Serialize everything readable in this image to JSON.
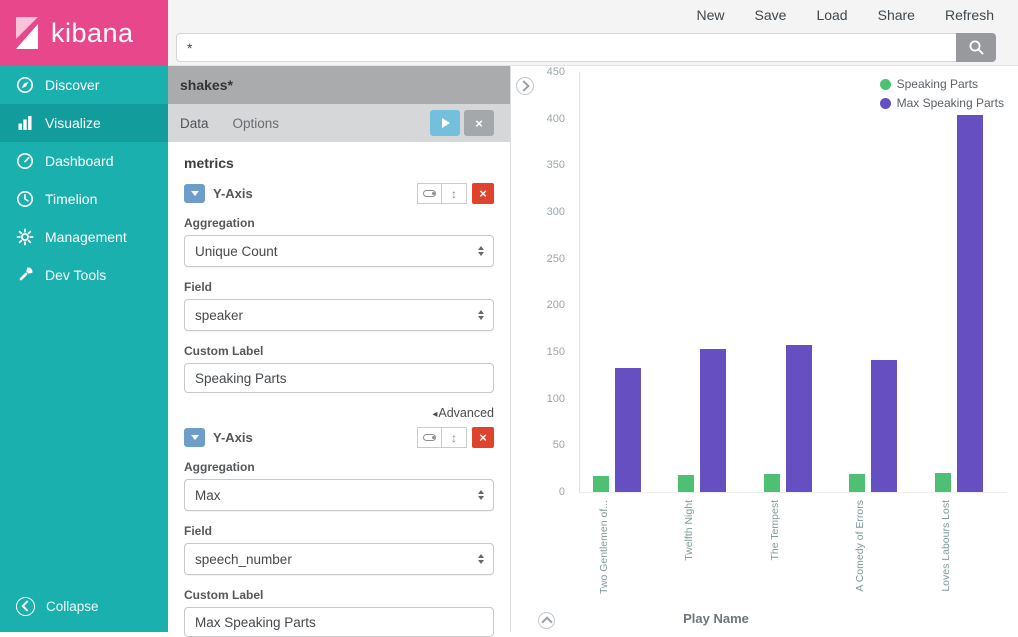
{
  "brand": {
    "name": "kibana",
    "color": "#e8478b"
  },
  "topnav": {
    "items": [
      {
        "label": "New"
      },
      {
        "label": "Save"
      },
      {
        "label": "Load"
      },
      {
        "label": "Share"
      },
      {
        "label": "Refresh"
      }
    ]
  },
  "search": {
    "value": "*"
  },
  "sidebar": {
    "color": "#1ab0ad",
    "items": [
      {
        "label": "Discover",
        "icon": "compass-icon",
        "active": false
      },
      {
        "label": "Visualize",
        "icon": "bar-chart-icon",
        "active": true
      },
      {
        "label": "Dashboard",
        "icon": "gauge-icon",
        "active": false
      },
      {
        "label": "Timelion",
        "icon": "clock-icon",
        "active": false
      },
      {
        "label": "Management",
        "icon": "gear-icon",
        "active": false
      },
      {
        "label": "Dev Tools",
        "icon": "wrench-icon",
        "active": false
      }
    ],
    "collapse_label": "Collapse"
  },
  "config": {
    "index_pattern": "shakes*",
    "tabs": [
      {
        "label": "Data",
        "active": true
      },
      {
        "label": "Options",
        "active": false
      }
    ],
    "metrics_heading": "metrics",
    "advanced_label": "Advanced",
    "metrics": [
      {
        "title": "Y-Axis",
        "aggregation_label": "Aggregation",
        "aggregation_value": "Unique Count",
        "field_label": "Field",
        "field_value": "speaker",
        "custom_label_label": "Custom Label",
        "custom_label_value": "Speaking Parts"
      },
      {
        "title": "Y-Axis",
        "aggregation_label": "Aggregation",
        "aggregation_value": "Max",
        "field_label": "Field",
        "field_value": "speech_number",
        "custom_label_label": "Custom Label",
        "custom_label_value": "Max Speaking Parts"
      }
    ]
  },
  "icons": {
    "close": "×",
    "reorder": "↕",
    "advanced_collapse": "◂"
  },
  "chart_data": {
    "type": "bar",
    "title": "",
    "categories": [
      "Two Gentlemen of...",
      "Twelfth Night",
      "The Tempest",
      "A Comedy of Errors",
      "Loves Labours Lost"
    ],
    "series": [
      {
        "name": "Speaking Parts",
        "color": "#4fbf73",
        "values": [
          17,
          18,
          19,
          19,
          20
        ]
      },
      {
        "name": "Max Speaking Parts",
        "color": "#664fc1",
        "values": [
          133,
          153,
          158,
          141,
          404
        ]
      }
    ],
    "xlabel": "Play Name",
    "ylabel": "",
    "ylim": [
      0,
      450
    ],
    "yticks": [
      0,
      50,
      100,
      150,
      200,
      250,
      300,
      350,
      400,
      450
    ],
    "legend_position": "top-right",
    "grid": false
  }
}
